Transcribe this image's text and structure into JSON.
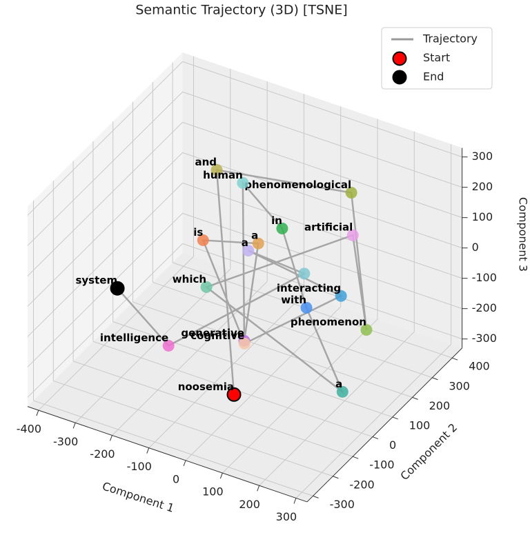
{
  "chart_data": {
    "type": "scatter3d",
    "title": "Semantic Trajectory (3D) [TSNE]",
    "xlabel": "Component 1",
    "ylabel": "Component 2",
    "zlabel": "Component 3",
    "labels": [
      "noosemia",
      "and",
      "phenomenological",
      "phenomenon",
      "artificial",
      "which",
      "a",
      "with",
      "in",
      "human",
      "generative",
      "a",
      "is",
      "cognitive",
      "interacting",
      "a",
      null,
      "intelligence",
      "system"
    ],
    "x": [
      61,
      -148,
      164,
      259,
      141,
      -68,
      275,
      150,
      3,
      -104,
      62,
      -8,
      -104,
      68,
      217,
      -8,
      63,
      -171,
      -337
    ],
    "y": [
      -200,
      100,
      200,
      100,
      250,
      -100,
      -50,
      0,
      150,
      150,
      -150,
      50,
      -50,
      -160,
      50,
      0,
      150,
      -100,
      -50
    ],
    "z": [
      -172,
      287,
      276,
      -72,
      94,
      64,
      -172,
      21,
      124,
      230,
      -27,
      135,
      171,
      -27,
      55,
      144,
      0,
      -172,
      -84
    ],
    "colors": [
      "#e8806a",
      "#b8b050",
      "#a0b040",
      "#90c050",
      "#e8a0e8",
      "#70c8a8",
      "#40b0a0",
      "#4a90f0",
      "#30b050",
      "#80d0d0",
      "#c070e0",
      "#e0a050",
      "#f08050",
      "#f4c8a8",
      "#40a0d8",
      "#c0b0f0",
      "#80c8d0",
      "#f070d0",
      "#444444"
    ],
    "trajectory_color": "#999999",
    "start_color": "#ff0000",
    "end_color": "#000000",
    "legend": [
      "Trajectory",
      "Start",
      "End"
    ],
    "legend_position": "upper right",
    "xlim": [
      -430,
      330
    ],
    "ylim": [
      -330,
      450
    ],
    "zlim": [
      -330,
      330
    ],
    "xticks": [
      -400,
      -300,
      -200,
      -100,
      0,
      100,
      200,
      300
    ],
    "yticks": [
      -300,
      -200,
      -100,
      0,
      100,
      200,
      300,
      400
    ],
    "zticks": [
      -300,
      -200,
      -100,
      0,
      100,
      200,
      300
    ],
    "grid": true
  }
}
